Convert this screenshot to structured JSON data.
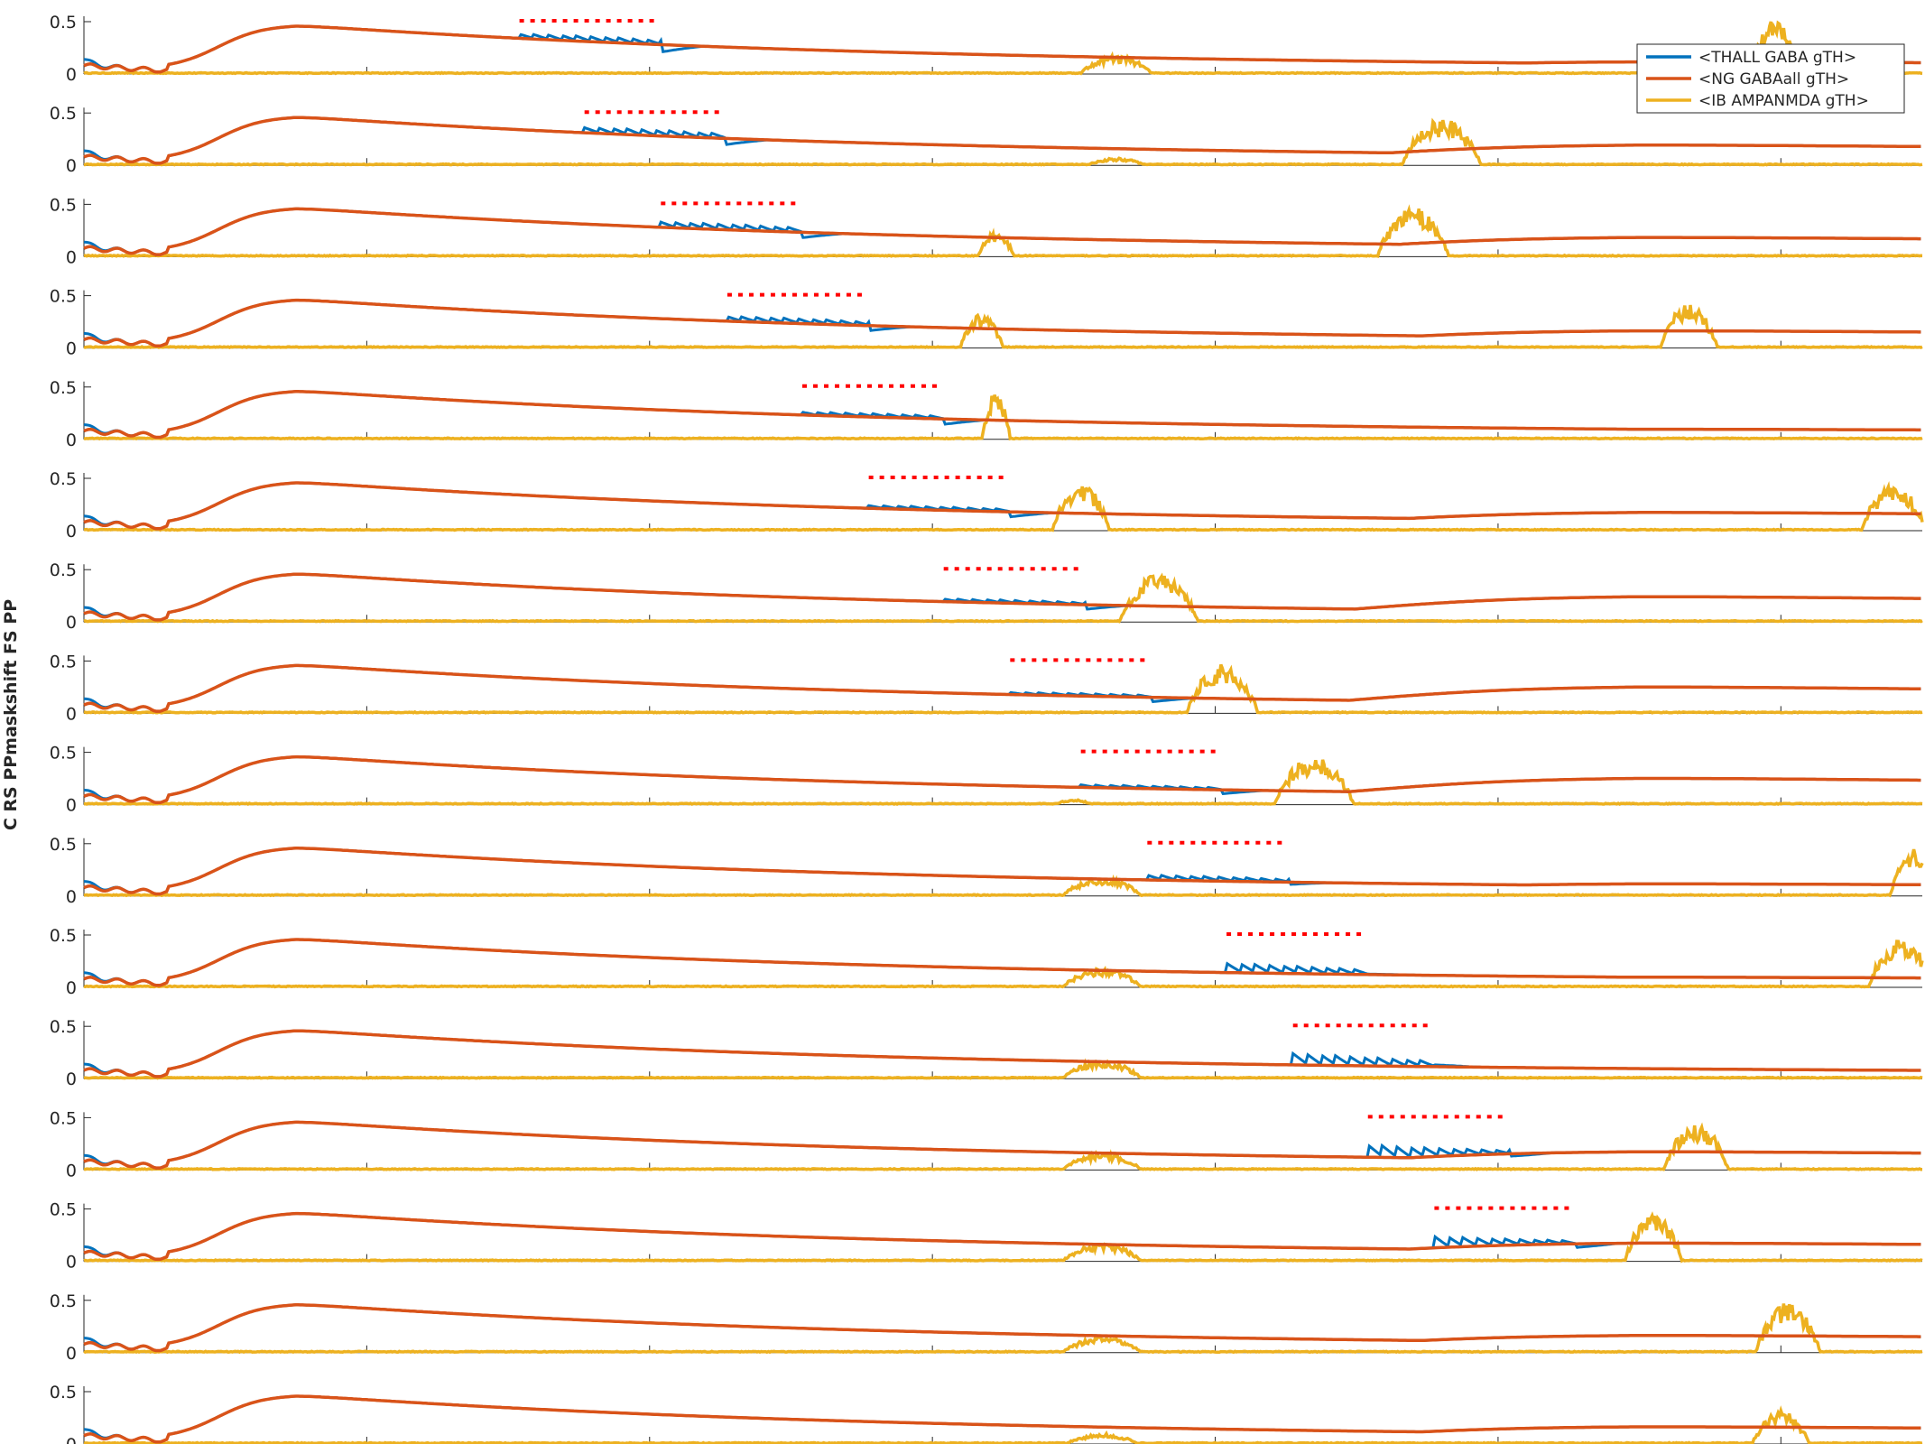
{
  "chart_data": {
    "type": "line",
    "ylabel": "C RS PPmaskshift FS PP",
    "xlim": [
      0,
      1300
    ],
    "ylim": [
      0,
      0.5
    ],
    "x_ticks": [
      "0",
      "200",
      "400",
      "600",
      "800",
      "1000",
      "1200"
    ],
    "y_ticks": [
      "0",
      "0.5"
    ],
    "grid": false,
    "legend": {
      "placement": "top-right",
      "entries": [
        {
          "name": "<THALL GABA gTH>",
          "color": "#0072BD"
        },
        {
          "name": "<NG GABAall gTH>",
          "color": "#D95319"
        },
        {
          "name": "<IB AMPANMDA gTH>",
          "color": "#EDB120"
        }
      ]
    },
    "stimulus_marker_color": "#FF0000",
    "series_colors": {
      "thall": "#0072BD",
      "ng": "#D95319",
      "ib": "#EDB120"
    },
    "panels": [
      {
        "stim_start": 308,
        "stim_peak": 0.38,
        "ib_bursts": [
          {
            "t": 730,
            "w": 50,
            "a": 0.18
          },
          {
            "t": 1195,
            "w": 35,
            "a": 0.52
          }
        ],
        "ng_late": 0.12
      },
      {
        "stim_start": 354,
        "stim_peak": 0.36,
        "ib_bursts": [
          {
            "t": 730,
            "w": 40,
            "a": 0.07
          },
          {
            "t": 960,
            "w": 55,
            "a": 0.45
          }
        ],
        "ng_late": 0.2
      },
      {
        "stim_start": 408,
        "stim_peak": 0.33,
        "ib_bursts": [
          {
            "t": 645,
            "w": 25,
            "a": 0.24
          },
          {
            "t": 940,
            "w": 50,
            "a": 0.47
          }
        ],
        "ng_late": 0.19
      },
      {
        "stim_start": 455,
        "stim_peak": 0.3,
        "ib_bursts": [
          {
            "t": 635,
            "w": 30,
            "a": 0.33
          },
          {
            "t": 1135,
            "w": 40,
            "a": 0.42
          }
        ],
        "ng_late": 0.17
      },
      {
        "stim_start": 508,
        "stim_peak": 0.26,
        "ib_bursts": [
          {
            "t": 645,
            "w": 20,
            "a": 0.45
          }
        ],
        "ng_late": 0.1
      },
      {
        "stim_start": 555,
        "stim_peak": 0.24,
        "ib_bursts": [
          {
            "t": 705,
            "w": 40,
            "a": 0.45
          },
          {
            "t": 1280,
            "w": 45,
            "a": 0.45
          }
        ],
        "ng_late": 0.18
      },
      {
        "stim_start": 608,
        "stim_peak": 0.22,
        "ib_bursts": [
          {
            "t": 760,
            "w": 55,
            "a": 0.47
          }
        ],
        "ng_late": 0.25
      },
      {
        "stim_start": 655,
        "stim_peak": 0.2,
        "ib_bursts": [
          {
            "t": 805,
            "w": 50,
            "a": 0.47
          }
        ],
        "ng_late": 0.26
      },
      {
        "stim_start": 705,
        "stim_peak": 0.19,
        "ib_bursts": [
          {
            "t": 700,
            "w": 25,
            "a": 0.05
          },
          {
            "t": 870,
            "w": 55,
            "a": 0.47
          }
        ],
        "ng_late": 0.26
      },
      {
        "stim_start": 752,
        "stim_peak": 0.2,
        "ib_bursts": [
          {
            "t": 720,
            "w": 55,
            "a": 0.18
          },
          {
            "t": 1295,
            "w": 35,
            "a": 0.45
          }
        ],
        "ng_late": 0.12
      },
      {
        "stim_start": 808,
        "stim_peak": 0.23,
        "ib_bursts": [
          {
            "t": 720,
            "w": 55,
            "a": 0.18
          },
          {
            "t": 1285,
            "w": 45,
            "a": 0.47
          }
        ],
        "ng_late": 0.1
      },
      {
        "stim_start": 855,
        "stim_peak": 0.24,
        "ib_bursts": [
          {
            "t": 720,
            "w": 55,
            "a": 0.17
          }
        ],
        "ng_late": 0.08
      },
      {
        "stim_start": 908,
        "stim_peak": 0.24,
        "ib_bursts": [
          {
            "t": 720,
            "w": 55,
            "a": 0.16
          },
          {
            "t": 1140,
            "w": 45,
            "a": 0.45
          }
        ],
        "ng_late": 0.18
      },
      {
        "stim_start": 955,
        "stim_peak": 0.24,
        "ib_bursts": [
          {
            "t": 720,
            "w": 55,
            "a": 0.17
          },
          {
            "t": 1110,
            "w": 40,
            "a": 0.45
          }
        ],
        "ng_late": 0.18
      },
      {
        "stim_start": null,
        "stim_peak": 0,
        "ib_bursts": [
          {
            "t": 720,
            "w": 55,
            "a": 0.15
          },
          {
            "t": 1205,
            "w": 45,
            "a": 0.48
          }
        ],
        "ng_late": 0.17
      },
      {
        "stim_start": null,
        "stim_peak": 0,
        "ib_bursts": [
          {
            "t": 720,
            "w": 50,
            "a": 0.1
          },
          {
            "t": 1200,
            "w": 40,
            "a": 0.32
          }
        ],
        "ng_late": 0.17
      }
    ]
  }
}
